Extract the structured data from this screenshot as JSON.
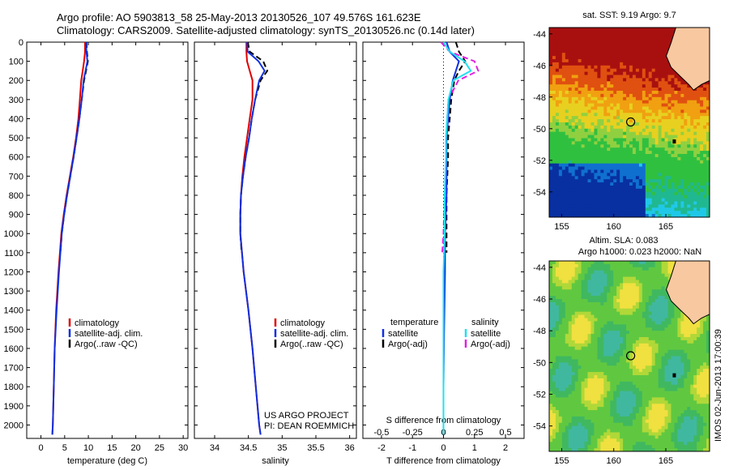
{
  "header": {
    "line1": "Argo profile: AO 5903813_58 25-May-2013 20130526_107 49.576S 161.623E",
    "line2": "Climatology: CARS2009. Satellite-adjusted climatology: synTS_20130526.nc (0.14d later)"
  },
  "colors": {
    "climatology": "#e00000",
    "satellite": "#1030e0",
    "argo": "#000000",
    "satellite_s": "#20e0f0",
    "argo_s": "#e020e0"
  },
  "chart_data": [
    {
      "type": "line",
      "id": "temperature",
      "xlabel": "temperature (deg C)",
      "ylabel": "",
      "xlim": [
        -3,
        31
      ],
      "ylim": [
        2070,
        0
      ],
      "x_ticks": [
        "0",
        "5",
        "10",
        "15",
        "20",
        "25",
        "30"
      ],
      "x_tick_values": [
        0,
        5,
        10,
        15,
        20,
        25,
        30
      ],
      "y_ticks": [
        "0",
        "100",
        "200",
        "300",
        "400",
        "500",
        "600",
        "700",
        "800",
        "900",
        "1000",
        "1100",
        "1200",
        "1300",
        "1400",
        "1500",
        "1600",
        "1700",
        "1800",
        "1900",
        "2000"
      ],
      "y_tick_values": [
        0,
        100,
        200,
        300,
        400,
        500,
        600,
        700,
        800,
        900,
        1000,
        1100,
        1200,
        1300,
        1400,
        1500,
        1600,
        1700,
        1800,
        1900,
        2000
      ],
      "legend": [
        "climatology",
        "satellite-adj. clim.",
        "Argo(..raw -QC)"
      ],
      "series": [
        {
          "name": "climatology",
          "depth": [
            0,
            50,
            100,
            150,
            200,
            300,
            400,
            500,
            600,
            700,
            800,
            900,
            1000,
            1200,
            1400,
            1600,
            1800,
            2000,
            2050
          ],
          "values": [
            9.3,
            9.3,
            9.1,
            8.8,
            8.5,
            8.2,
            7.9,
            7.4,
            6.8,
            6.1,
            5.4,
            4.8,
            4.3,
            3.7,
            3.2,
            2.9,
            2.7,
            2.5,
            2.4
          ]
        },
        {
          "name": "satellite-adj. clim.",
          "depth": [
            0,
            50,
            100,
            150,
            200,
            300,
            400,
            500,
            600,
            700,
            800,
            900,
            1000,
            1200,
            1400,
            1600,
            1800,
            2000,
            2050
          ],
          "values": [
            9.5,
            9.6,
            9.8,
            9.4,
            9.0,
            8.6,
            8.1,
            7.5,
            6.9,
            6.2,
            5.5,
            4.9,
            4.4,
            3.8,
            3.3,
            2.9,
            2.7,
            2.5,
            2.4
          ]
        },
        {
          "name": "Argo(..raw -QC)",
          "depth": [
            0,
            50,
            100,
            150,
            200,
            300,
            400,
            500,
            600,
            700,
            800,
            900,
            1000,
            1100
          ],
          "values": [
            9.6,
            9.7,
            9.9,
            9.5,
            9.1,
            8.6,
            8.1,
            7.5,
            6.9,
            6.2,
            5.5,
            4.9,
            4.4,
            4.1
          ]
        }
      ]
    },
    {
      "type": "line",
      "id": "salinity",
      "xlabel": "salinity",
      "xlim": [
        33.7,
        36.1
      ],
      "ylim": [
        2070,
        0
      ],
      "x_ticks": [
        "34",
        "34.5",
        "35",
        "35.5",
        "36"
      ],
      "x_tick_values": [
        34,
        34.5,
        35,
        35.5,
        36
      ],
      "legend": [
        "climatology",
        "satellite-adj. clim.",
        "Argo(..raw -QC)"
      ],
      "annotation": [
        "US ARGO PROJECT",
        "PI: DEAN ROEMMICH"
      ],
      "series": [
        {
          "name": "climatology",
          "depth": [
            0,
            50,
            100,
            150,
            200,
            300,
            400,
            500,
            600,
            700,
            800,
            900,
            1000,
            1200,
            1400,
            1600,
            1800,
            2000,
            2050
          ],
          "values": [
            34.47,
            34.47,
            34.48,
            34.52,
            34.56,
            34.56,
            34.52,
            34.48,
            34.44,
            34.41,
            34.39,
            34.38,
            34.38,
            34.43,
            34.5,
            34.56,
            34.61,
            34.66,
            34.68
          ]
        },
        {
          "name": "satellite-adj. clim.",
          "depth": [
            0,
            50,
            100,
            150,
            200,
            300,
            400,
            500,
            600,
            700,
            800,
            900,
            1000,
            1200,
            1400,
            1600,
            1800,
            2000,
            2050
          ],
          "values": [
            34.48,
            34.49,
            34.65,
            34.74,
            34.66,
            34.6,
            34.55,
            34.51,
            34.46,
            34.42,
            34.39,
            34.38,
            34.38,
            34.43,
            34.5,
            34.56,
            34.61,
            34.66,
            34.68
          ]
        },
        {
          "name": "Argo(..raw -QC)",
          "depth": [
            0,
            50,
            100,
            150,
            200,
            300,
            400,
            500,
            600,
            700,
            800,
            900,
            1000,
            1100
          ],
          "values": [
            34.49,
            34.52,
            34.72,
            34.78,
            34.68,
            34.6,
            34.55,
            34.51,
            34.46,
            34.42,
            34.39,
            34.38,
            34.38,
            34.4
          ]
        }
      ]
    },
    {
      "type": "line",
      "id": "difference",
      "xlabel": "T difference from climatology",
      "xlabel_top": "S difference from climatology",
      "xlim": [
        -2.6,
        2.6
      ],
      "ylim": [
        2070,
        0
      ],
      "x_ticks": [
        "-2",
        "-1",
        "0",
        "1",
        "2"
      ],
      "x_tick_values": [
        -2,
        -1,
        0,
        1,
        2
      ],
      "s_ticks": [
        "-0.5",
        "-0.25",
        "0",
        "0.25",
        "0.5"
      ],
      "s_tick_values": [
        -0.5,
        -0.25,
        0,
        0.25,
        0.5
      ],
      "legend_temperature": {
        "title": "temperature",
        "items": [
          "satellite",
          "Argo(-adj)"
        ]
      },
      "legend_salinity": {
        "title": "salinity",
        "items": [
          "satellite",
          "Argo(-adj)"
        ]
      },
      "series": [
        {
          "name": "T satellite",
          "depth": [
            0,
            50,
            100,
            150,
            200,
            300,
            400,
            500,
            600,
            800,
            1000,
            1200,
            1500,
            1800,
            2050
          ],
          "values": [
            0.1,
            0.2,
            0.5,
            0.4,
            0.3,
            0.2,
            0.15,
            0.1,
            0.1,
            0.1,
            0.05,
            0.05,
            0.02,
            0.0,
            0.0
          ]
        },
        {
          "name": "T Argo(-adj)",
          "depth": [
            0,
            50,
            100,
            150,
            200,
            300,
            400,
            500,
            600,
            800,
            1000,
            1100
          ],
          "values": [
            0.4,
            0.5,
            0.7,
            0.5,
            0.35,
            0.25,
            0.2,
            0.15,
            0.15,
            0.1,
            0.1,
            0.1
          ]
        },
        {
          "name": "S satellite",
          "depth": [
            0,
            50,
            100,
            150,
            200,
            300,
            400,
            500,
            600,
            800,
            1000,
            1200,
            1500,
            1800,
            2050
          ],
          "values": [
            0.0,
            0.05,
            0.17,
            0.22,
            0.08,
            0.04,
            0.03,
            0.02,
            0.02,
            0.01,
            0.01,
            0.0,
            0.0,
            0.0,
            0.0
          ]
        },
        {
          "name": "S Argo(-adj)",
          "depth": [
            0,
            50,
            100,
            150,
            200,
            300,
            400,
            500,
            600,
            800,
            1000,
            1100
          ],
          "values": [
            -0.02,
            0.05,
            0.25,
            0.28,
            0.12,
            0.04,
            0.03,
            0.02,
            0.02,
            0.01,
            0.0,
            -0.01
          ]
        }
      ]
    },
    {
      "type": "heatmap",
      "id": "sst_map",
      "title": "sat. SST: 9.19  Argo: 9.7",
      "x_ticks": [
        "155",
        "160",
        "165"
      ],
      "x_tick_values": [
        155,
        160,
        165
      ],
      "y_ticks": [
        "-44",
        "-46",
        "-48",
        "-50",
        "-52",
        "-54"
      ],
      "y_tick_values": [
        -44,
        -46,
        -48,
        -50,
        -52,
        -54
      ],
      "xlim": [
        153.8,
        169.2
      ],
      "ylim": [
        -55.6,
        -43.6
      ],
      "marker": [
        161.623,
        -49.576
      ]
    },
    {
      "type": "heatmap",
      "id": "sla_map",
      "title": [
        "Altim. SLA: 0.083",
        "Argo h1000: 0.023 h2000: NaN"
      ],
      "x_ticks": [
        "155",
        "160",
        "165"
      ],
      "x_tick_values": [
        155,
        160,
        165
      ],
      "y_ticks": [
        "-44",
        "-46",
        "-48",
        "-50",
        "-52",
        "-54"
      ],
      "y_tick_values": [
        -44,
        -46,
        -48,
        -50,
        -52,
        -54
      ],
      "xlim": [
        153.8,
        169.2
      ],
      "ylim": [
        -55.6,
        -43.6
      ],
      "marker": [
        161.623,
        -49.576
      ]
    }
  ],
  "side_stamp": "IMOS 02-Jun-2013 17:00:39"
}
